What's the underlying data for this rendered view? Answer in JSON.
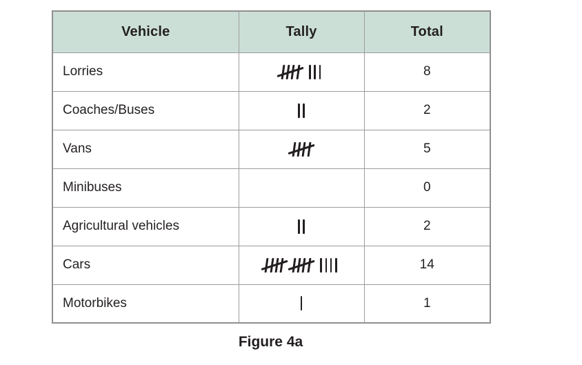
{
  "colors": {
    "header_bg": "#cbdfd7",
    "border": "#9c9c9c",
    "outer_border": "#8f8f8f",
    "text": "#231f20",
    "page_bg": "#ffffff"
  },
  "table": {
    "headers": [
      "Vehicle",
      "Tally",
      "Total"
    ],
    "rows": [
      {
        "vehicle": "Lorries",
        "tally_groups": [
          5,
          3
        ],
        "total": "8"
      },
      {
        "vehicle": "Coaches/Buses",
        "tally_groups": [
          2
        ],
        "total": "2"
      },
      {
        "vehicle": "Vans",
        "tally_groups": [
          5
        ],
        "total": "5"
      },
      {
        "vehicle": "Minibuses",
        "tally_groups": [],
        "total": "0"
      },
      {
        "vehicle": "Agricultural vehicles",
        "tally_groups": [
          2
        ],
        "total": "2"
      },
      {
        "vehicle": "Cars",
        "tally_groups": [
          5,
          5,
          4
        ],
        "total": "14"
      },
      {
        "vehicle": "Motorbikes",
        "tally_groups": [
          1
        ],
        "total": "1"
      }
    ]
  },
  "caption": "Figure 4a",
  "chart_data": {
    "type": "table",
    "title": "Figure 4a",
    "categories": [
      "Lorries",
      "Coaches/Buses",
      "Vans",
      "Minibuses",
      "Agricultural vehicles",
      "Cars",
      "Motorbikes"
    ],
    "values": [
      8,
      2,
      5,
      0,
      2,
      14,
      1
    ],
    "columns": [
      "Vehicle",
      "Tally",
      "Total"
    ]
  }
}
